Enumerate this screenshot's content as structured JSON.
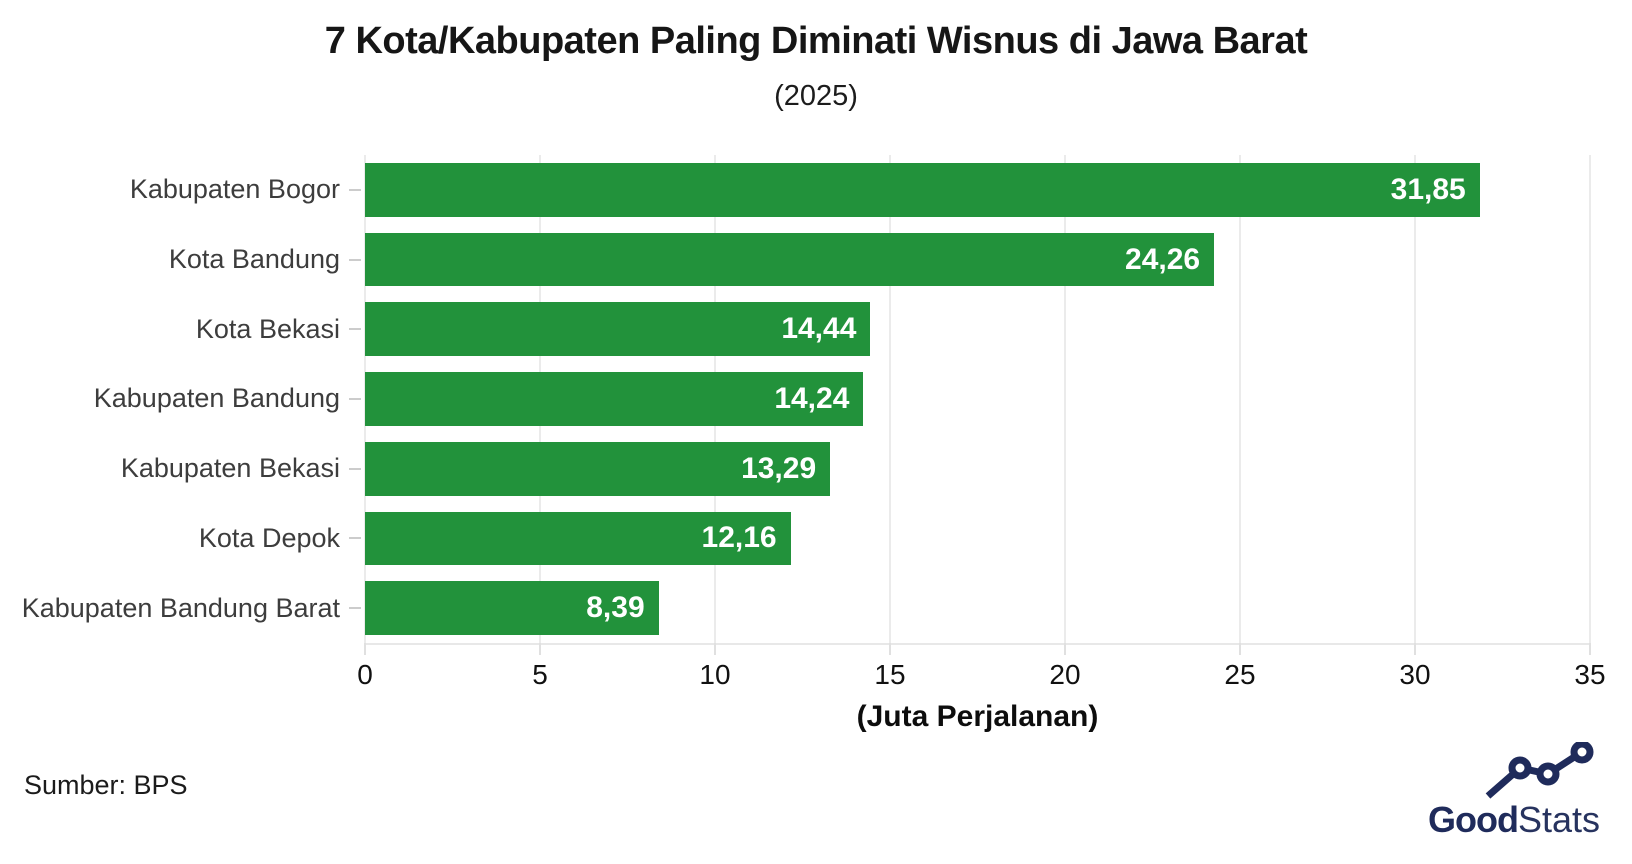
{
  "title": "7 Kota/Kabupaten Paling Diminati Wisnus di Jawa Barat",
  "subtitle": "(2025)",
  "source": "Sumber: BPS",
  "logo": {
    "bold": "Good",
    "light": "Stats"
  },
  "colors": {
    "bar": "#22923b",
    "grid": "#ebebeb",
    "category_label": "#3d3d3d",
    "value_label": "#ffffff",
    "logo_navy": "#1f2b5b"
  },
  "chart_data": {
    "type": "bar",
    "orientation": "horizontal",
    "title": "7 Kota/Kabupaten Paling Diminati Wisnus di Jawa Barat",
    "subtitle": "(2025)",
    "categories": [
      "Kabupaten Bogor",
      "Kota Bandung",
      "Kota Bekasi",
      "Kabupaten Bandung",
      "Kabupaten Bekasi",
      "Kota Depok",
      "Kabupaten Bandung Barat"
    ],
    "values": [
      31.85,
      24.26,
      14.44,
      14.24,
      13.29,
      12.16,
      8.39
    ],
    "value_labels": [
      "31,85",
      "24,26",
      "14,44",
      "14,24",
      "13,29",
      "12,16",
      "8,39"
    ],
    "xlabel": "(Juta Perjalanan)",
    "ylabel": "",
    "xlim": [
      0,
      35
    ],
    "xticks": [
      0,
      5,
      10,
      15,
      20,
      25,
      30,
      35
    ],
    "grid": true,
    "legend": false,
    "source": "Sumber: BPS"
  }
}
